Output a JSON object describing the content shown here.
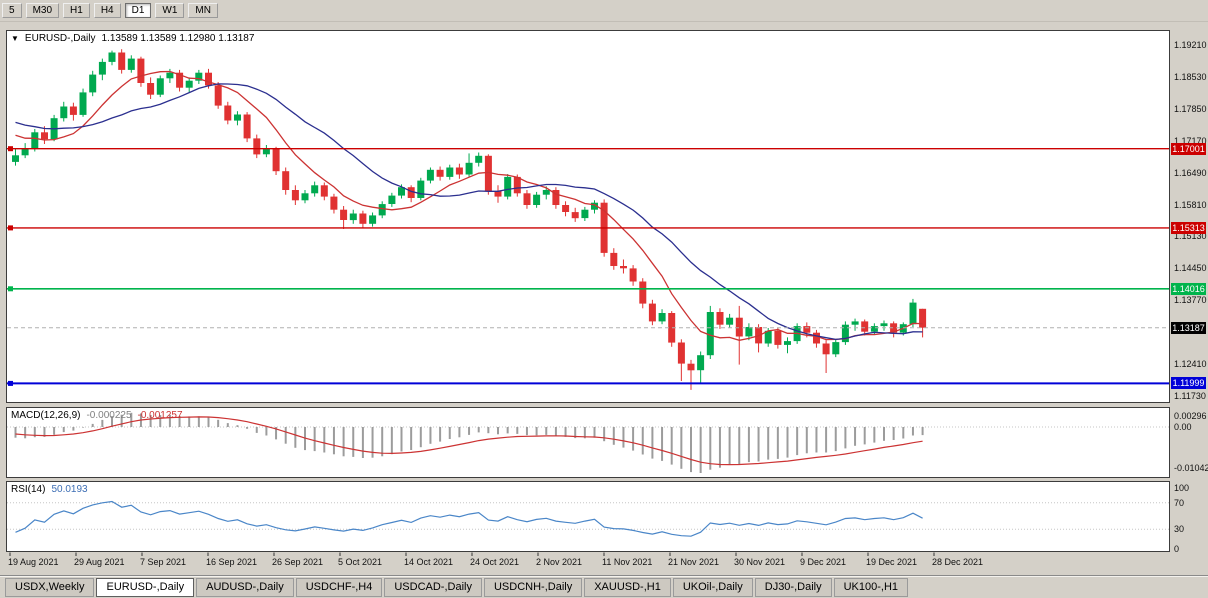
{
  "toolbar": {
    "timeframes": [
      {
        "label": "5",
        "active": false
      },
      {
        "label": "M30",
        "active": false
      },
      {
        "label": "H1",
        "active": false
      },
      {
        "label": "H4",
        "active": false
      },
      {
        "label": "D1",
        "active": true
      },
      {
        "label": "W1",
        "active": false
      },
      {
        "label": "MN",
        "active": false
      }
    ]
  },
  "icons": {
    "chart_dropdown": "▼"
  },
  "chart": {
    "title": "EURUSD-,Daily",
    "ohlc_text": "1.13589 1.13589 1.12980 1.13187"
  },
  "price_axis_labels": [
    "1.19210",
    "1.18530",
    "1.17850",
    "1.17170",
    "1.16490",
    "1.15810",
    "1.15130",
    "1.14450",
    "1.13770",
    "1.12410",
    "1.11730"
  ],
  "current_price": {
    "text": "1.13187",
    "value": 1.13187,
    "color": "#000000"
  },
  "macd_panel": {
    "label": "MACD(12,26,9)",
    "value_main": "-0.000225",
    "value_signal": "-0.001257",
    "axis_labels": [
      "0.00296",
      "0.00",
      "-0.01042"
    ]
  },
  "rsi_panel": {
    "label": "RSI(14)",
    "value": "50.0193",
    "axis_labels": [
      "100",
      "70",
      "30",
      "0"
    ],
    "axis_values": [
      100,
      70,
      30,
      0
    ],
    "level_lines": [
      70,
      30
    ]
  },
  "date_axis": [
    "19 Aug 2021",
    "29 Aug 2021",
    "7 Sep 2021",
    "16 Sep 2021",
    "26 Sep 2021",
    "5 Oct 2021",
    "14 Oct 2021",
    "24 Oct 2021",
    "2 Nov 2021",
    "11 Nov 2021",
    "21 Nov 2021",
    "30 Nov 2021",
    "9 Dec 2021",
    "19 Dec 2021",
    "28 Dec 2021"
  ],
  "tabs": [
    {
      "label": "USDX,Weekly",
      "active": false
    },
    {
      "label": "EURUSD-,Daily",
      "active": true
    },
    {
      "label": "AUDUSD-,Daily",
      "active": false
    },
    {
      "label": "USDCHF-,H4",
      "active": false
    },
    {
      "label": "USDCAD-,Daily",
      "active": false
    },
    {
      "label": "USDCNH-,Daily",
      "active": false
    },
    {
      "label": "XAUUSD-,H1",
      "active": false
    },
    {
      "label": "UKOil-,Daily",
      "active": false
    },
    {
      "label": "DJ30-,Daily",
      "active": false
    },
    {
      "label": "UK100-,H1",
      "active": false
    }
  ],
  "colors": {
    "window_bg": "#d4d0c8",
    "panel_bg": "#ffffff",
    "candle_up": "#00a94f",
    "candle_down": "#e03232",
    "macd_hist": "#9c9c9c",
    "macd_signal": "#cc3333",
    "rsi_line": "#4a86c8",
    "price_line": "#b0b0b0"
  },
  "chart_data": {
    "type": "candlestick",
    "symbol": "EURUSD-",
    "timeframe": "Daily",
    "last_bar": {
      "open": 1.13589,
      "high": 1.13589,
      "low": 1.1298,
      "close": 1.13187
    },
    "y_range": [
      1.1173,
      1.1921
    ],
    "horizontal_lines": [
      {
        "price": 1.17001,
        "text": "1.17001",
        "color": "#cc0000",
        "width": 1.4
      },
      {
        "price": 1.15313,
        "text": "1.15313",
        "color": "#cc0000",
        "width": 1.4
      },
      {
        "price": 1.14016,
        "text": "1.14016",
        "color": "#00b44c",
        "width": 1.6
      },
      {
        "price": 1.11999,
        "text": "1.11999",
        "color": "#0000d8",
        "width": 2
      }
    ],
    "moving_averages": [
      {
        "period": 8,
        "color": "#cc3333"
      },
      {
        "period": 18,
        "color": "#2b2f8f"
      }
    ],
    "pre_window_closes": [
      1.1802,
      1.1795,
      1.1788,
      1.178,
      1.1772,
      1.1786,
      1.1798,
      1.1806,
      1.1812,
      1.1804,
      1.1796,
      1.1788,
      1.1778,
      1.1768,
      1.1758,
      1.177,
      1.1782,
      1.1774,
      1.1762,
      1.175,
      1.1738,
      1.1748,
      1.1758,
      1.1744,
      1.1716,
      1.169
    ],
    "candles": [
      [
        1.1672,
        1.17,
        1.1664,
        1.1686
      ],
      [
        1.1686,
        1.1712,
        1.168,
        1.17
      ],
      [
        1.17,
        1.1742,
        1.1694,
        1.1735
      ],
      [
        1.1735,
        1.1748,
        1.171,
        1.172
      ],
      [
        1.172,
        1.1772,
        1.1716,
        1.1765
      ],
      [
        1.1765,
        1.18,
        1.1758,
        1.179
      ],
      [
        1.179,
        1.1798,
        1.176,
        1.1772
      ],
      [
        1.1772,
        1.1828,
        1.1768,
        1.182
      ],
      [
        1.182,
        1.1866,
        1.1812,
        1.1858
      ],
      [
        1.1858,
        1.1892,
        1.1846,
        1.1885
      ],
      [
        1.1885,
        1.1909,
        1.1878,
        1.1905
      ],
      [
        1.1905,
        1.1912,
        1.186,
        1.1868
      ],
      [
        1.1868,
        1.1899,
        1.1862,
        1.1892
      ],
      [
        1.1892,
        1.1896,
        1.1832,
        1.184
      ],
      [
        1.184,
        1.1852,
        1.1806,
        1.1815
      ],
      [
        1.1815,
        1.1856,
        1.181,
        1.185
      ],
      [
        1.185,
        1.187,
        1.184,
        1.1862
      ],
      [
        1.1862,
        1.1868,
        1.1822,
        1.183
      ],
      [
        1.183,
        1.1852,
        1.182,
        1.1845
      ],
      [
        1.1845,
        1.1868,
        1.1838,
        1.1862
      ],
      [
        1.1862,
        1.187,
        1.1828,
        1.1835
      ],
      [
        1.1835,
        1.1842,
        1.1785,
        1.1792
      ],
      [
        1.1792,
        1.18,
        1.1752,
        1.176
      ],
      [
        1.176,
        1.178,
        1.175,
        1.1773
      ],
      [
        1.1773,
        1.1778,
        1.1714,
        1.1722
      ],
      [
        1.1722,
        1.173,
        1.168,
        1.1688
      ],
      [
        1.1688,
        1.1708,
        1.1682,
        1.17
      ],
      [
        1.17,
        1.1704,
        1.1644,
        1.1652
      ],
      [
        1.1652,
        1.166,
        1.1602,
        1.1612
      ],
      [
        1.1612,
        1.1622,
        1.158,
        1.159
      ],
      [
        1.159,
        1.1612,
        1.1584,
        1.1605
      ],
      [
        1.1605,
        1.163,
        1.1598,
        1.1622
      ],
      [
        1.1622,
        1.1628,
        1.159,
        1.1598
      ],
      [
        1.1598,
        1.1604,
        1.1562,
        1.157
      ],
      [
        1.157,
        1.1578,
        1.1529,
        1.1548
      ],
      [
        1.1548,
        1.157,
        1.154,
        1.1562
      ],
      [
        1.1562,
        1.1568,
        1.1531,
        1.154
      ],
      [
        1.154,
        1.1564,
        1.1534,
        1.1558
      ],
      [
        1.1558,
        1.1588,
        1.1552,
        1.1582
      ],
      [
        1.1582,
        1.1606,
        1.1576,
        1.16
      ],
      [
        1.16,
        1.1624,
        1.1594,
        1.1618
      ],
      [
        1.1618,
        1.1622,
        1.1586,
        1.1595
      ],
      [
        1.1595,
        1.1638,
        1.159,
        1.1632
      ],
      [
        1.1632,
        1.166,
        1.1626,
        1.1655
      ],
      [
        1.1655,
        1.1662,
        1.1632,
        1.164
      ],
      [
        1.164,
        1.1666,
        1.1634,
        1.166
      ],
      [
        1.166,
        1.1668,
        1.1636,
        1.1645
      ],
      [
        1.1645,
        1.169,
        1.164,
        1.167
      ],
      [
        1.167,
        1.1692,
        1.1662,
        1.1685
      ],
      [
        1.1685,
        1.1688,
        1.1602,
        1.161
      ],
      [
        1.161,
        1.1622,
        1.1585,
        1.1598
      ],
      [
        1.1598,
        1.1646,
        1.1592,
        1.164
      ],
      [
        1.164,
        1.1645,
        1.1598,
        1.1605
      ],
      [
        1.1605,
        1.1612,
        1.1572,
        1.158
      ],
      [
        1.158,
        1.1608,
        1.1574,
        1.1602
      ],
      [
        1.1602,
        1.162,
        1.1592,
        1.1612
      ],
      [
        1.1612,
        1.1618,
        1.1572,
        1.158
      ],
      [
        1.158,
        1.1588,
        1.1556,
        1.1565
      ],
      [
        1.1565,
        1.1574,
        1.1544,
        1.1552
      ],
      [
        1.1552,
        1.1576,
        1.1546,
        1.157
      ],
      [
        1.157,
        1.159,
        1.1562,
        1.1585
      ],
      [
        1.1585,
        1.1592,
        1.147,
        1.1478
      ],
      [
        1.1478,
        1.1488,
        1.1442,
        1.145
      ],
      [
        1.145,
        1.1464,
        1.1434,
        1.1445
      ],
      [
        1.1445,
        1.1452,
        1.1408,
        1.1417
      ],
      [
        1.1417,
        1.1424,
        1.136,
        1.137
      ],
      [
        1.137,
        1.1378,
        1.1324,
        1.1332
      ],
      [
        1.1332,
        1.1358,
        1.1326,
        1.135
      ],
      [
        1.135,
        1.1354,
        1.1278,
        1.1287
      ],
      [
        1.1287,
        1.1294,
        1.1205,
        1.1242
      ],
      [
        1.1242,
        1.125,
        1.1186,
        1.1228
      ],
      [
        1.1228,
        1.1268,
        1.12,
        1.126
      ],
      [
        1.126,
        1.1365,
        1.1252,
        1.1352
      ],
      [
        1.1352,
        1.136,
        1.1316,
        1.1325
      ],
      [
        1.1325,
        1.1348,
        1.1318,
        1.134
      ],
      [
        1.134,
        1.1365,
        1.124,
        1.13
      ],
      [
        1.13,
        1.1328,
        1.1292,
        1.132
      ],
      [
        1.132,
        1.1326,
        1.1266,
        1.1285
      ],
      [
        1.1285,
        1.1318,
        1.1278,
        1.1312
      ],
      [
        1.1312,
        1.1318,
        1.1274,
        1.1282
      ],
      [
        1.1282,
        1.1298,
        1.1264,
        1.129
      ],
      [
        1.129,
        1.1328,
        1.1284,
        1.1322
      ],
      [
        1.1322,
        1.133,
        1.1298,
        1.1308
      ],
      [
        1.1308,
        1.1314,
        1.1276,
        1.1285
      ],
      [
        1.1285,
        1.1292,
        1.1222,
        1.1262
      ],
      [
        1.1262,
        1.1294,
        1.1256,
        1.1288
      ],
      [
        1.1288,
        1.1332,
        1.1282,
        1.1325
      ],
      [
        1.1325,
        1.1338,
        1.1312,
        1.1332
      ],
      [
        1.1332,
        1.1336,
        1.1302,
        1.131
      ],
      [
        1.131,
        1.1328,
        1.1304,
        1.1322
      ],
      [
        1.1322,
        1.1334,
        1.1312,
        1.1328
      ],
      [
        1.1328,
        1.1332,
        1.1298,
        1.1308
      ],
      [
        1.1308,
        1.133,
        1.1302,
        1.1326
      ],
      [
        1.1326,
        1.138,
        1.132,
        1.1372
      ],
      [
        1.13589,
        1.13589,
        1.1298,
        1.13187
      ]
    ],
    "indicators": [
      {
        "name": "MACD",
        "params": [
          12,
          26,
          9
        ],
        "current_values": [
          -0.000225,
          -0.001257
        ]
      },
      {
        "name": "RSI",
        "params": [
          14
        ],
        "current_value": 50.0193
      }
    ]
  }
}
